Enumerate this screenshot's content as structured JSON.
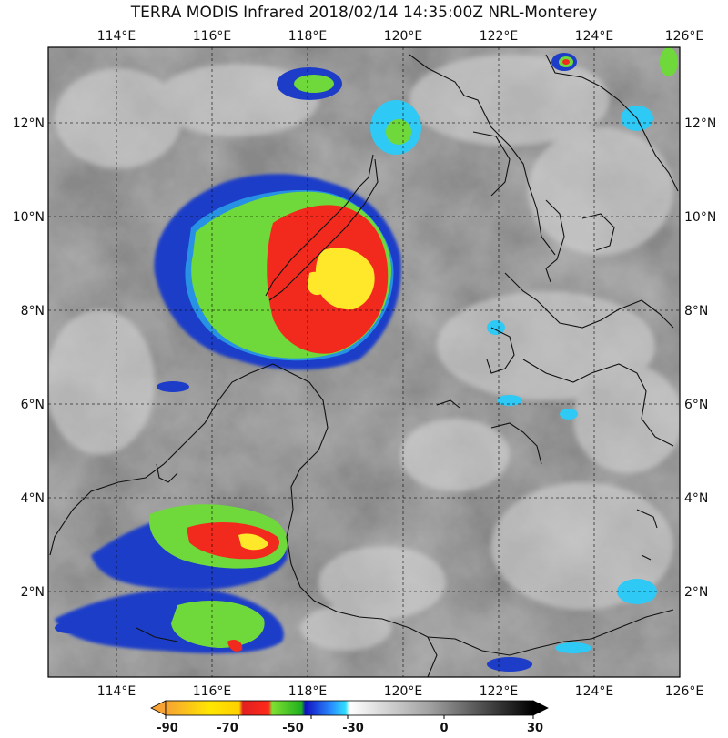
{
  "title": "TERRA MODIS Infrared 2018/02/14 14:35:00Z NRL-Monterey",
  "lon_labels": [
    "114°E",
    "116°E",
    "118°E",
    "120°E",
    "122°E",
    "124°E",
    "126°E"
  ],
  "lat_labels": [
    "12°N",
    "10°N",
    "8°N",
    "6°N",
    "4°N",
    "2°N"
  ],
  "colorbar": {
    "tick_labels": [
      "-90",
      "-70",
      "-50",
      "-30",
      "0",
      "30"
    ],
    "stops": [
      "#f7a233",
      "#ffe600",
      "#ffd000",
      "#e02020",
      "#ff2a1a",
      "#7fe030",
      "#1fb01f",
      "#1010c0",
      "#2a8cff",
      "#30e0ff",
      "#ffffff",
      "#a0a0a0",
      "#000000"
    ]
  },
  "colors": {
    "yellow": "#ffe82a",
    "red": "#f22a1e",
    "green": "#6fd83a",
    "blue": "#1d3cc8",
    "cyan": "#2fc9f5",
    "coast": "#111111"
  }
}
